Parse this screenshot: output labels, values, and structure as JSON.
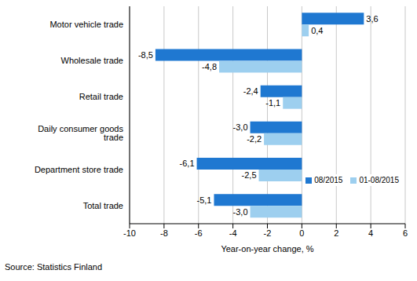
{
  "chart_data": {
    "type": "bar",
    "orientation": "horizontal",
    "categories": [
      "Motor vehicle trade",
      "Wholesale trade",
      "Retail trade",
      "Daily consumer goods trade",
      "Department store trade",
      "Total trade"
    ],
    "series": [
      {
        "name": "08/2015",
        "color": "#1f78d1",
        "values": [
          3.6,
          -8.5,
          -2.4,
          -3.0,
          -6.1,
          -5.1
        ],
        "value_labels": [
          "3,6",
          "-8,5",
          "-2,4",
          "-3,0",
          "-6,1",
          "-5,1"
        ]
      },
      {
        "name": "01-08/2015",
        "color": "#9dcfef",
        "values": [
          0.4,
          -4.8,
          -1.1,
          -2.2,
          -2.5,
          -3.0
        ],
        "value_labels": [
          "0,4",
          "-4,8",
          "-1,1",
          "-2,2",
          "-2,5",
          "-3,0"
        ]
      }
    ],
    "xlim": [
      -10,
      6
    ],
    "xticks": [
      -10,
      -8,
      -6,
      -4,
      -2,
      0,
      2,
      4,
      6
    ],
    "x_label": "Year-on-year change, %",
    "source": "Source: Statistics Finland",
    "grid": true,
    "legend": "lower right",
    "data_labels": true
  }
}
